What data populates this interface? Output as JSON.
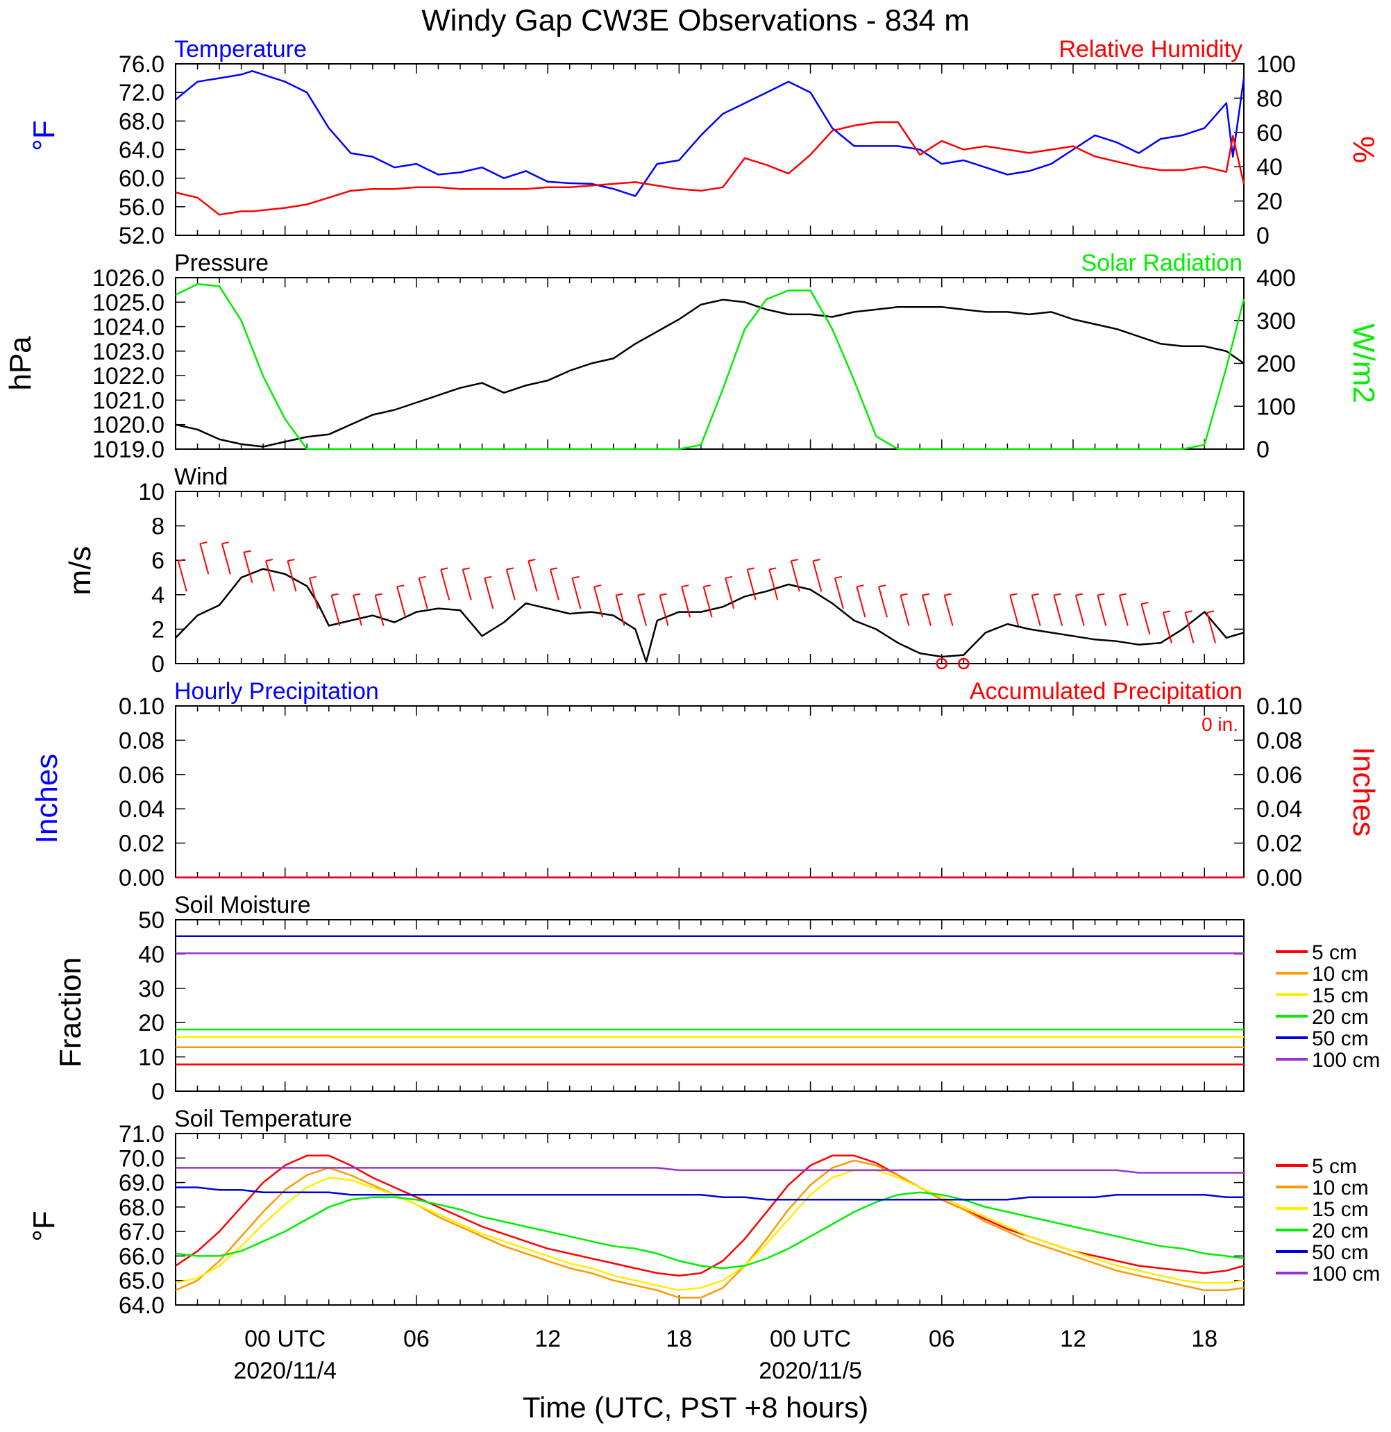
{
  "title": "Windy Gap CW3E Observations - 834 m",
  "xlabel": "Time (UTC, PST +8 hours)",
  "x_ticks": [
    "00 UTC",
    "06",
    "12",
    "18",
    "00 UTC",
    "06",
    "12",
    "18"
  ],
  "x_dates": [
    "2020/11/4",
    "2020/11/5"
  ],
  "colors": {
    "temperature": "#0000ff",
    "humidity": "#ff0000",
    "pressure": "#000000",
    "solar": "#00ee00",
    "wind": "#000000",
    "barb": "#ff0000",
    "hourly": "#0000ff",
    "accum": "#ff0000",
    "d5": "#ff0000",
    "d10": "#ff9900",
    "d15": "#ffee00",
    "d20": "#00ee00",
    "d50": "#0000dd",
    "d100": "#9933cc"
  },
  "chart_data": [
    {
      "type": "line",
      "title": "Temperature / Relative Humidity",
      "left_label": "Temperature",
      "right_label": "Relative Humidity",
      "left_unit": "°F",
      "right_unit": "%",
      "ylim": [
        52,
        76
      ],
      "ylim_right": [
        0,
        100
      ],
      "yticks": [
        "52.0",
        "56.0",
        "60.0",
        "64.0",
        "68.0",
        "72.0",
        "76.0"
      ],
      "yticks_right": [
        "0",
        "20",
        "40",
        "60",
        "80",
        "100"
      ],
      "x_hours": [
        -5,
        -4,
        -3,
        -2,
        -1.5,
        0,
        1,
        2,
        3,
        4,
        5,
        6,
        7,
        8,
        9,
        10,
        11,
        12,
        13,
        14,
        15,
        16,
        17,
        18,
        19,
        20,
        21,
        22,
        23,
        24,
        25,
        26,
        27,
        28,
        29,
        30,
        31,
        32,
        33,
        34,
        35,
        36,
        37,
        38,
        39,
        40,
        41,
        42,
        43,
        43.3,
        43.8
      ],
      "series": [
        {
          "name": "Temperature",
          "axis": "left",
          "values": [
            71,
            73.5,
            74,
            74.5,
            75,
            73.5,
            72,
            67,
            63.5,
            63,
            61.5,
            62,
            60.5,
            60.8,
            61.5,
            60,
            61,
            59.5,
            59.3,
            59.2,
            58.5,
            57.5,
            62,
            62.5,
            66,
            69,
            70.5,
            72,
            73.5,
            72,
            67,
            64.5,
            64.5,
            64.5,
            64,
            62,
            62.5,
            61.5,
            60.5,
            61,
            62,
            64,
            66,
            65,
            63.5,
            65.5,
            66,
            67,
            70.5,
            63,
            74
          ]
        },
        {
          "name": "Relative Humidity",
          "axis": "right",
          "values": [
            25,
            22,
            12,
            14,
            14,
            16,
            18,
            22,
            26,
            27,
            27,
            28,
            28,
            27,
            27,
            27,
            27,
            28,
            28,
            29,
            30,
            31,
            29,
            27,
            26,
            28,
            45,
            41,
            36,
            47,
            61,
            64,
            66,
            66,
            47,
            55,
            50,
            52,
            50,
            48,
            50,
            52,
            46,
            43,
            40,
            38,
            38,
            40,
            37,
            58,
            30
          ]
        }
      ]
    },
    {
      "type": "line",
      "title": "Pressure / Solar Radiation",
      "left_label": "Pressure",
      "right_label": "Solar Radiation",
      "left_unit": "hPa",
      "right_unit": "W/m2",
      "ylim": [
        1019,
        1026
      ],
      "ylim_right": [
        0,
        400
      ],
      "yticks": [
        "1019.0",
        "1020.0",
        "1021.0",
        "1022.0",
        "1023.0",
        "1024.0",
        "1025.0",
        "1026.0"
      ],
      "yticks_right": [
        "0",
        "100",
        "200",
        "300",
        "400"
      ],
      "x_hours": [
        -5,
        -4,
        -3,
        -2,
        -1,
        0,
        1,
        2,
        3,
        4,
        5,
        6,
        7,
        8,
        9,
        10,
        11,
        12,
        13,
        14,
        15,
        16,
        17,
        18,
        19,
        20,
        21,
        22,
        23,
        24,
        25,
        26,
        27,
        28,
        29,
        30,
        31,
        32,
        33,
        34,
        35,
        36,
        37,
        38,
        39,
        40,
        41,
        42,
        43,
        43.8
      ],
      "series": [
        {
          "name": "Pressure",
          "axis": "left",
          "values": [
            1020.0,
            1019.8,
            1019.4,
            1019.2,
            1019.1,
            1019.3,
            1019.5,
            1019.6,
            1020.0,
            1020.4,
            1020.6,
            1020.9,
            1021.2,
            1021.5,
            1021.7,
            1021.3,
            1021.6,
            1021.8,
            1022.2,
            1022.5,
            1022.7,
            1023.3,
            1023.8,
            1024.3,
            1024.9,
            1025.1,
            1025.0,
            1024.7,
            1024.5,
            1024.5,
            1024.4,
            1024.6,
            1024.7,
            1024.8,
            1024.8,
            1024.8,
            1024.7,
            1024.6,
            1024.6,
            1024.5,
            1024.6,
            1024.3,
            1024.1,
            1023.9,
            1023.6,
            1023.3,
            1023.2,
            1023.2,
            1023.0,
            1022.5
          ]
        },
        {
          "name": "Solar Radiation",
          "axis": "right",
          "values": [
            360,
            385,
            380,
            300,
            170,
            70,
            0,
            0,
            0,
            0,
            0,
            0,
            0,
            0,
            0,
            0,
            0,
            0,
            0,
            0,
            0,
            0,
            0,
            0,
            10,
            140,
            280,
            350,
            370,
            370,
            280,
            160,
            30,
            0,
            0,
            0,
            0,
            0,
            0,
            0,
            0,
            0,
            0,
            0,
            0,
            0,
            0,
            10,
            190,
            350
          ]
        }
      ]
    },
    {
      "type": "line",
      "title": "Wind",
      "left_label": "Wind",
      "left_unit": "m/s",
      "ylim": [
        0,
        10
      ],
      "yticks": [
        "0",
        "2",
        "4",
        "6",
        "8",
        "10"
      ],
      "x_hours": [
        -5,
        -4,
        -3,
        -2,
        -1,
        0,
        1,
        1.5,
        2,
        3,
        4,
        5,
        6,
        7,
        8,
        9,
        10,
        11,
        12,
        13,
        14,
        15,
        16,
        16.5,
        17,
        18,
        19,
        20,
        21,
        22,
        23,
        24,
        25,
        26,
        27,
        28,
        29,
        30,
        31,
        32,
        33,
        34,
        35,
        36,
        37,
        38,
        39,
        40,
        41,
        42,
        43,
        43.8
      ],
      "series": [
        {
          "name": "Wind speed",
          "axis": "left",
          "values": [
            1.5,
            2.8,
            3.4,
            5.0,
            5.5,
            5.2,
            4.5,
            3.5,
            2.2,
            2.5,
            2.8,
            2.4,
            3.0,
            3.2,
            3.1,
            1.6,
            2.4,
            3.5,
            3.2,
            2.9,
            3.0,
            2.8,
            2.0,
            0.1,
            2.5,
            3.0,
            3.0,
            3.3,
            3.9,
            4.2,
            4.6,
            4.3,
            3.5,
            2.5,
            2.0,
            1.2,
            0.6,
            0.4,
            0.5,
            1.8,
            2.3,
            2.0,
            1.8,
            1.6,
            1.4,
            1.3,
            1.1,
            1.2,
            2.0,
            3.0,
            1.5,
            1.8
          ]
        }
      ],
      "barb_hours": [
        -4.5,
        -3.5,
        -2.5,
        -1.5,
        -0.5,
        0.5,
        1.5,
        2.5,
        3.5,
        4.5,
        5.5,
        6.5,
        7.5,
        8.5,
        9.5,
        10.5,
        11.5,
        12.5,
        13.5,
        14.5,
        15.5,
        16.5,
        17.5,
        18.5,
        19.5,
        20.5,
        21.5,
        22.5,
        23.5,
        24.5,
        25.5,
        26.5,
        27.5,
        28.5,
        29.5,
        30.5,
        31.5,
        32.5,
        33.5,
        34.5,
        35.5,
        36.5,
        37.5,
        38.5,
        39.5,
        40.5,
        41.5,
        42.5
      ],
      "barb_speeds": [
        5,
        6,
        6,
        5.5,
        5,
        5,
        4,
        3,
        3,
        3,
        3.5,
        4,
        4.5,
        4.5,
        4,
        4.5,
        5,
        4.5,
        4,
        3.5,
        3,
        3,
        3,
        3.5,
        3.5,
        4,
        4.5,
        4.5,
        5,
        5,
        4,
        3.5,
        3.5,
        3,
        3,
        3,
        0,
        0,
        3,
        3,
        3,
        3,
        3,
        3,
        2.5,
        2,
        2,
        2
      ],
      "calm_hours": [
        30.0,
        31.0
      ]
    },
    {
      "type": "bar",
      "title": "Hourly / Accumulated Precipitation",
      "left_label": "Hourly Precipitation",
      "right_label": "Accumulated Precipitation",
      "left_unit": "Inches",
      "right_unit": "Inches",
      "accum_text": "0 in.",
      "ylim": [
        0,
        0.1
      ],
      "ylim_right": [
        0,
        0.1
      ],
      "yticks": [
        "0.00",
        "0.02",
        "0.04",
        "0.06",
        "0.08",
        "0.10"
      ],
      "yticks_right": [
        "0.00",
        "0.02",
        "0.04",
        "0.06",
        "0.08",
        "0.10"
      ],
      "x_hours": [
        -5,
        43.8
      ],
      "series": [
        {
          "name": "Hourly Precipitation",
          "axis": "left",
          "values": [
            0,
            0
          ]
        },
        {
          "name": "Accumulated Precipitation",
          "axis": "right",
          "values": [
            0,
            0
          ]
        }
      ]
    },
    {
      "type": "line",
      "title": "Soil Moisture",
      "left_label": "Soil Moisture",
      "left_unit": "Fraction",
      "ylim": [
        0,
        50
      ],
      "yticks": [
        "0",
        "10",
        "20",
        "30",
        "40",
        "50"
      ],
      "x_hours": [
        -5,
        43.8
      ],
      "legend": [
        "5 cm",
        "10 cm",
        "15 cm",
        "20 cm",
        "50 cm",
        "100 cm"
      ],
      "series": [
        {
          "name": "5 cm",
          "values": [
            7.8,
            7.8
          ]
        },
        {
          "name": "10 cm",
          "values": [
            12.8,
            12.8
          ]
        },
        {
          "name": "15 cm",
          "values": [
            15.8,
            15.8
          ]
        },
        {
          "name": "20 cm",
          "values": [
            18.0,
            18.0
          ]
        },
        {
          "name": "50 cm",
          "values": [
            45.2,
            45.2
          ]
        },
        {
          "name": "100 cm",
          "values": [
            40.2,
            40.2
          ]
        }
      ]
    },
    {
      "type": "line",
      "title": "Soil Temperature",
      "left_label": "Soil Temperature",
      "left_unit": "°F",
      "ylim": [
        64,
        71
      ],
      "yticks": [
        "64.0",
        "65.0",
        "66.0",
        "67.0",
        "68.0",
        "69.0",
        "70.0",
        "71.0"
      ],
      "x_hours": [
        -5,
        -4,
        -3,
        -2,
        -1,
        0,
        1,
        2,
        3,
        4,
        5,
        6,
        7,
        8,
        9,
        10,
        11,
        12,
        13,
        14,
        15,
        16,
        17,
        18,
        19,
        20,
        21,
        22,
        23,
        24,
        25,
        26,
        27,
        28,
        29,
        30,
        31,
        32,
        33,
        34,
        35,
        36,
        37,
        38,
        39,
        40,
        41,
        42,
        43,
        43.8
      ],
      "legend": [
        "5 cm",
        "10 cm",
        "15 cm",
        "20 cm",
        "50 cm",
        "100 cm"
      ],
      "series": [
        {
          "name": "5 cm",
          "values": [
            65.6,
            66.2,
            67.0,
            68.0,
            69.0,
            69.7,
            70.1,
            70.1,
            69.7,
            69.2,
            68.8,
            68.4,
            68.0,
            67.6,
            67.2,
            66.9,
            66.6,
            66.3,
            66.1,
            65.9,
            65.7,
            65.5,
            65.3,
            65.2,
            65.3,
            65.8,
            66.7,
            67.8,
            68.9,
            69.7,
            70.1,
            70.1,
            69.8,
            69.3,
            68.8,
            68.3,
            67.9,
            67.5,
            67.1,
            66.8,
            66.5,
            66.2,
            66.0,
            65.8,
            65.6,
            65.5,
            65.4,
            65.3,
            65.4,
            65.6
          ]
        },
        {
          "name": "10 cm",
          "values": [
            64.6,
            65.0,
            65.8,
            66.8,
            67.8,
            68.7,
            69.3,
            69.6,
            69.3,
            68.9,
            68.5,
            68.1,
            67.6,
            67.2,
            66.8,
            66.4,
            66.1,
            65.8,
            65.5,
            65.3,
            65.0,
            64.8,
            64.6,
            64.3,
            64.3,
            64.7,
            65.6,
            66.7,
            67.9,
            68.9,
            69.6,
            69.9,
            69.7,
            69.3,
            68.8,
            68.3,
            67.9,
            67.4,
            67.0,
            66.6,
            66.3,
            66.0,
            65.7,
            65.4,
            65.2,
            65.0,
            64.8,
            64.6,
            64.6,
            64.7
          ]
        },
        {
          "name": "15 cm",
          "values": [
            64.9,
            65.1,
            65.6,
            66.4,
            67.3,
            68.1,
            68.8,
            69.2,
            69.1,
            68.8,
            68.5,
            68.1,
            67.7,
            67.3,
            66.9,
            66.6,
            66.3,
            66.0,
            65.7,
            65.5,
            65.2,
            65.0,
            64.8,
            64.6,
            64.7,
            65.0,
            65.6,
            66.5,
            67.5,
            68.5,
            69.2,
            69.5,
            69.5,
            69.2,
            68.8,
            68.4,
            68.0,
            67.6,
            67.2,
            66.8,
            66.5,
            66.2,
            65.9,
            65.6,
            65.4,
            65.2,
            65.0,
            64.9,
            64.9,
            65.0
          ]
        },
        {
          "name": "20 cm",
          "values": [
            66.1,
            66.0,
            66.0,
            66.2,
            66.6,
            67.0,
            67.5,
            68.0,
            68.3,
            68.4,
            68.4,
            68.3,
            68.1,
            67.9,
            67.6,
            67.4,
            67.2,
            67.0,
            66.8,
            66.6,
            66.4,
            66.3,
            66.1,
            65.8,
            65.6,
            65.5,
            65.6,
            65.9,
            66.3,
            66.8,
            67.3,
            67.8,
            68.2,
            68.5,
            68.6,
            68.5,
            68.3,
            68.0,
            67.8,
            67.6,
            67.4,
            67.2,
            67.0,
            66.8,
            66.6,
            66.4,
            66.3,
            66.1,
            66.0,
            65.9
          ]
        },
        {
          "name": "50 cm",
          "values": [
            68.8,
            68.8,
            68.7,
            68.7,
            68.6,
            68.6,
            68.6,
            68.6,
            68.5,
            68.5,
            68.5,
            68.5,
            68.5,
            68.5,
            68.5,
            68.5,
            68.5,
            68.5,
            68.5,
            68.5,
            68.5,
            68.5,
            68.5,
            68.5,
            68.5,
            68.4,
            68.4,
            68.3,
            68.3,
            68.3,
            68.3,
            68.3,
            68.3,
            68.3,
            68.3,
            68.3,
            68.3,
            68.3,
            68.3,
            68.4,
            68.4,
            68.4,
            68.4,
            68.5,
            68.5,
            68.5,
            68.5,
            68.5,
            68.4,
            68.4
          ]
        },
        {
          "name": "100 cm",
          "values": [
            69.6,
            69.6,
            69.6,
            69.6,
            69.6,
            69.6,
            69.6,
            69.6,
            69.6,
            69.6,
            69.6,
            69.6,
            69.6,
            69.6,
            69.6,
            69.6,
            69.6,
            69.6,
            69.6,
            69.6,
            69.6,
            69.6,
            69.6,
            69.5,
            69.5,
            69.5,
            69.5,
            69.5,
            69.5,
            69.5,
            69.5,
            69.5,
            69.5,
            69.5,
            69.5,
            69.5,
            69.5,
            69.5,
            69.5,
            69.5,
            69.5,
            69.5,
            69.5,
            69.5,
            69.4,
            69.4,
            69.4,
            69.4,
            69.4,
            69.4
          ]
        }
      ]
    }
  ]
}
